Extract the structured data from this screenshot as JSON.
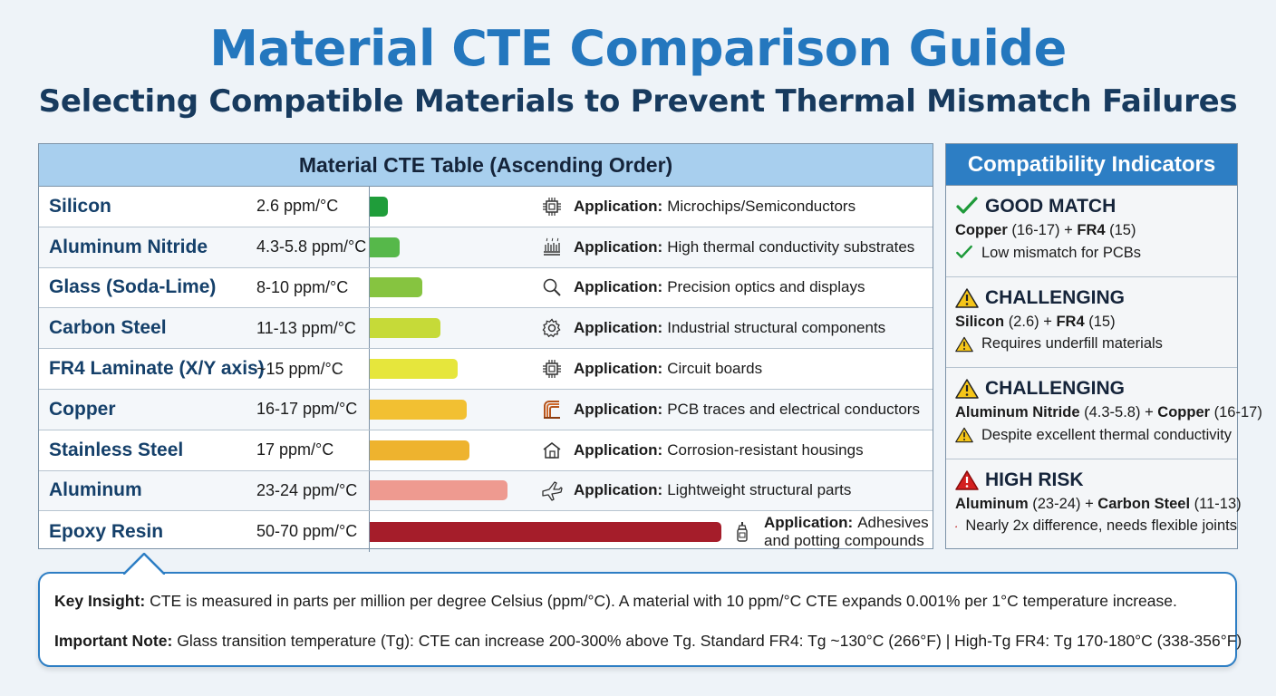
{
  "title": "Material CTE Comparison Guide",
  "subtitle": "Selecting Compatible Materials to Prevent Thermal Mismatch Failures",
  "table": {
    "header": "Material CTE Table (Ascending Order)",
    "app_prefix": "Application:",
    "rows": [
      {
        "name": "Silicon",
        "cte": "2.6 ppm/°C",
        "cte_value": 2.6,
        "bar_color": "#1f9d3a",
        "icon": "chip-icon",
        "application": "Microchips/Semiconductors"
      },
      {
        "name": "Aluminum Nitride",
        "cte": "4.3-5.8 ppm/°C",
        "cte_value": 5.05,
        "bar_color": "#56b84a",
        "icon": "heat-sink-icon",
        "application": "High thermal conductivity substrates"
      },
      {
        "name": "Glass (Soda-Lime)",
        "cte": "8-10 ppm/°C",
        "cte_value": 9,
        "bar_color": "#86c440",
        "icon": "magnifier-icon",
        "application": "Precision optics and displays"
      },
      {
        "name": "Carbon Steel",
        "cte": "11-13 ppm/°C",
        "cte_value": 12,
        "bar_color": "#c6da38",
        "icon": "gear-icon",
        "application": "Industrial structural components"
      },
      {
        "name": "FR4 Laminate (X/Y axis)",
        "cte": "~15 ppm/°C",
        "cte_value": 15,
        "bar_color": "#e6e63c",
        "icon": "circuit-icon",
        "application": "Circuit boards"
      },
      {
        "name": "Copper",
        "cte": "16-17 ppm/°C",
        "cte_value": 16.5,
        "bar_color": "#f2c032",
        "icon": "copper-coil-icon",
        "application": "PCB traces and electrical conductors"
      },
      {
        "name": "Stainless Steel",
        "cte": "17 ppm/°C",
        "cte_value": 17,
        "bar_color": "#eeb32e",
        "icon": "house-icon",
        "application": "Corrosion-resistant housings"
      },
      {
        "name": "Aluminum",
        "cte": "23-24 ppm/°C",
        "cte_value": 23.5,
        "bar_color": "#ee9a90",
        "icon": "airplane-icon",
        "application": "Lightweight structural parts"
      },
      {
        "name": "Epoxy Resin",
        "cte": "50-70 ppm/°C",
        "cte_value": 60,
        "bar_color": "#a51d2a",
        "icon": "glue-bottle-icon",
        "application": "Adhesives and potting compounds"
      }
    ]
  },
  "indicators": {
    "header": "Compatibility Indicators",
    "cards": [
      {
        "status": "GOOD MATCH",
        "level": "good",
        "m1": "Copper",
        "v1": "(16-17)",
        "plus": "+",
        "m2": "FR4",
        "v2": "(15)",
        "note": "Low mismatch for PCBs"
      },
      {
        "status": "CHALLENGING",
        "level": "warn",
        "m1": "Silicon",
        "v1": "(2.6)",
        "plus": "+",
        "m2": "FR4",
        "v2": "(15)",
        "note": "Requires underfill materials"
      },
      {
        "status": "CHALLENGING",
        "level": "warn",
        "m1": "Aluminum Nitride",
        "v1": "(4.3-5.8)",
        "plus": "+",
        "m2": "Copper",
        "v2": "(16-17)",
        "note": "Despite excellent thermal conductivity"
      },
      {
        "status": "HIGH RISK",
        "level": "risk",
        "m1": "Aluminum",
        "v1": "(23-24)",
        "plus": "+",
        "m2": "Carbon Steel",
        "v2": "(11-13)",
        "note": "Nearly 2x difference, needs flexible joints"
      }
    ]
  },
  "insight": {
    "key_label": "Key Insight:",
    "key_text": "CTE is measured in parts per million per degree Celsius (ppm/°C). A material with 10 ppm/°C CTE expands 0.001% per 1°C temperature increase.",
    "note_label": "Important Note:",
    "note_text": "Glass transition temperature (Tg): CTE can increase 200-300% above Tg. Standard FR4: Tg ~130°C (266°F) | High-Tg FR4: Tg 170-180°C (338-356°F)"
  }
}
